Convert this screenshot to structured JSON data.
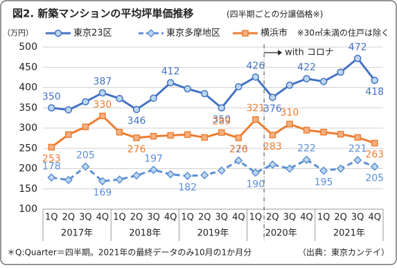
{
  "chart_data": {
    "type": "line",
    "title": "図2. 新築マンションの平均坪単価推移",
    "subtitle": "(四半期ごとの分譲価格※)",
    "y_unit": "（万円）",
    "note": "※30㎡未満の住戸は除く",
    "annotation": "with コロナ",
    "footnote": "＊Q:Quarter＝四半期。2021年の最終データのみ10月の1か月分",
    "source": "（出典：東京カンテイ）",
    "categories": [
      "1Q",
      "2Q",
      "3Q",
      "4Q",
      "1Q",
      "2Q",
      "3Q",
      "4Q",
      "1Q",
      "2Q",
      "3Q",
      "4Q",
      "1Q",
      "2Q",
      "3Q",
      "4Q",
      "1Q",
      "2Q",
      "3Q",
      "4Q"
    ],
    "category_groups": [
      "2017年",
      "2018年",
      "2019年",
      "2020年",
      "2021年"
    ],
    "ylim": [
      100,
      500
    ],
    "yticks": [
      100,
      150,
      200,
      250,
      300,
      350,
      400,
      450,
      500
    ],
    "grid": true,
    "series": [
      {
        "name": "東京23区",
        "color": "#4472c4",
        "marker": "circle",
        "dash": false,
        "values": [
          350,
          345,
          365,
          387,
          373,
          346,
          374,
          412,
          397,
          385,
          350,
          402,
          426,
          376,
          406,
          422,
          415,
          438,
          472,
          418
        ],
        "value_labels": [
          "350",
          null,
          null,
          "387",
          null,
          "346",
          null,
          "412",
          null,
          null,
          "350",
          null,
          "426",
          "376",
          null,
          "422",
          null,
          null,
          "472",
          "418"
        ]
      },
      {
        "name": "東京多摩地区",
        "color": "#5b8fd6",
        "marker": "diamond",
        "dash": true,
        "values": [
          178,
          172,
          205,
          169,
          173,
          183,
          197,
          186,
          182,
          184,
          195,
          220,
          190,
          210,
          200,
          222,
          195,
          200,
          221,
          205
        ],
        "value_labels": [
          "178",
          null,
          "205",
          "169",
          null,
          null,
          "197",
          null,
          "182",
          null,
          null,
          "220",
          "190",
          null,
          null,
          "222",
          "195",
          null,
          "221",
          "205"
        ]
      },
      {
        "name": "横浜市",
        "color": "#ed7d31",
        "marker": "square",
        "dash": false,
        "values": [
          253,
          284,
          303,
          330,
          290,
          276,
          280,
          282,
          284,
          277,
          289,
          276,
          321,
          283,
          310,
          295,
          290,
          285,
          277,
          263
        ],
        "value_labels": [
          "253",
          null,
          null,
          "330",
          null,
          "276",
          null,
          null,
          null,
          null,
          "289",
          "276",
          "321",
          "283",
          "310",
          null,
          null,
          null,
          null,
          "263"
        ]
      }
    ]
  }
}
